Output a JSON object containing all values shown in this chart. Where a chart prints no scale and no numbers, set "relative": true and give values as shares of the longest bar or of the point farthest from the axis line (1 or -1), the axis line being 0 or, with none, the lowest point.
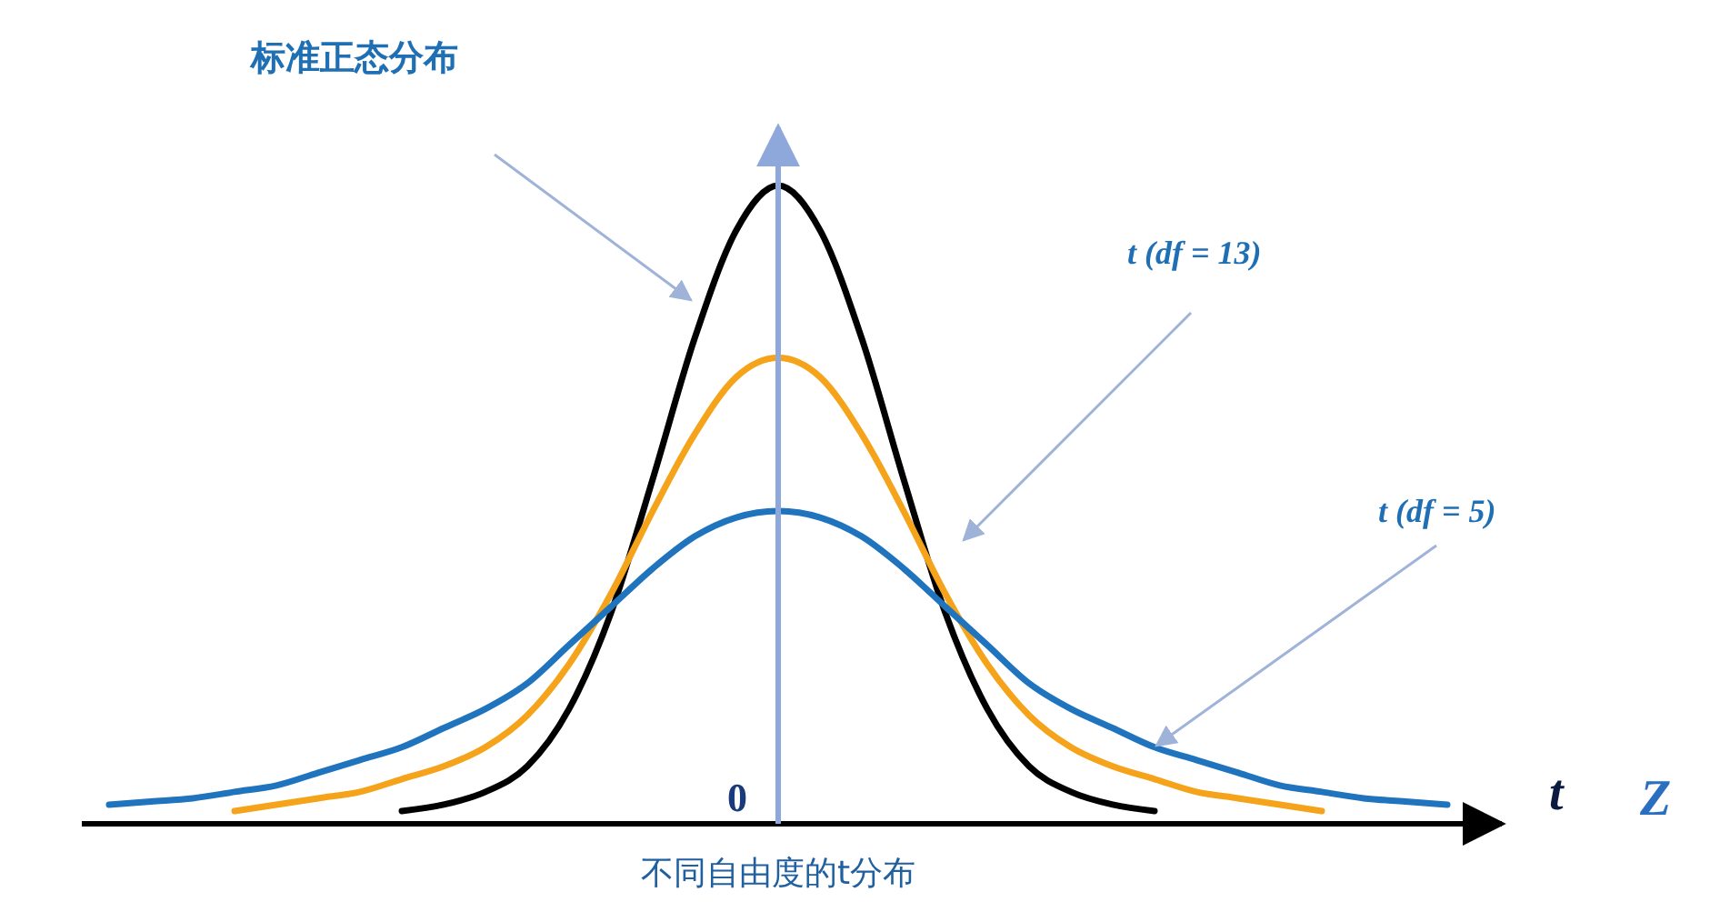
{
  "chart_data": {
    "type": "line",
    "relative": true,
    "marker": "none",
    "line_style": "solid",
    "xlabel": "不同自由度的t分布",
    "categories": [
      null,
      null,
      null,
      null,
      null,
      null,
      null,
      null,
      null,
      null,
      null,
      null,
      null,
      null,
      null,
      null,
      null,
      null,
      null,
      null,
      null,
      null,
      null,
      null,
      null,
      null,
      null,
      null,
      null,
      null,
      null,
      null,
      null
    ],
    "annotations": [
      "标准正态分布",
      "t (df = 13)",
      "t (df = 5)",
      "0",
      "t",
      "Z"
    ],
    "series": [
      {
        "color": "#000000",
        "values": [
          null,
          null,
          null,
          null,
          null,
          null,
          null,
          0.02,
          0.03,
          0.05,
          0.09,
          0.18,
          0.33,
          0.54,
          0.76,
          0.93,
          1.0,
          0.93,
          0.76,
          0.54,
          0.33,
          0.18,
          0.09,
          0.05,
          0.03,
          0.02,
          null,
          null,
          null,
          null,
          null,
          null,
          null
        ]
      },
      {
        "color": "#f5a31a",
        "values": [
          null,
          null,
          null,
          0.02,
          0.03,
          0.04,
          0.05,
          0.07,
          0.09,
          0.12,
          0.17,
          0.25,
          0.36,
          0.49,
          0.61,
          0.7,
          0.73,
          0.7,
          0.61,
          0.49,
          0.36,
          0.25,
          0.17,
          0.12,
          0.09,
          0.07,
          0.05,
          0.04,
          0.03,
          0.02,
          null,
          null,
          null
        ]
      },
      {
        "color": "#1f74bd",
        "values": [
          0.03,
          0.035,
          0.04,
          0.05,
          0.06,
          0.08,
          0.1,
          0.12,
          0.15,
          0.18,
          0.22,
          0.28,
          0.34,
          0.4,
          0.45,
          0.48,
          0.49,
          0.48,
          0.45,
          0.4,
          0.34,
          0.28,
          0.22,
          0.18,
          0.15,
          0.12,
          0.1,
          0.08,
          0.06,
          0.05,
          0.04,
          0.035,
          0.03
        ]
      }
    ]
  }
}
